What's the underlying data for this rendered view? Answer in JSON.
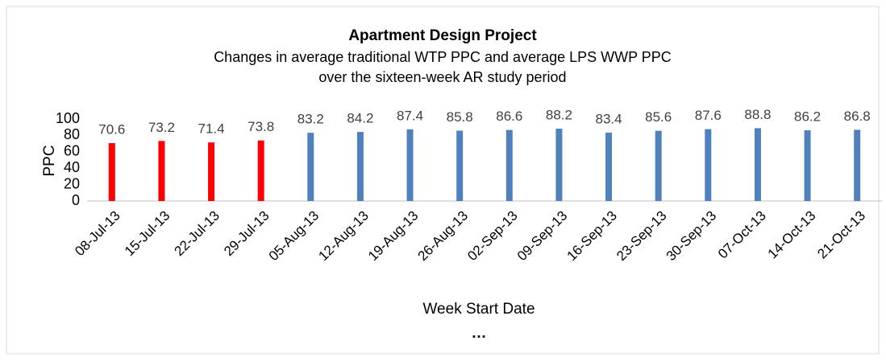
{
  "chart_data": {
    "type": "bar",
    "title": "Apartment Design Project",
    "subtitle": [
      "Changes in average traditional WTP PPC and average LPS WWP PPC",
      "over the sixteen-week AR study period"
    ],
    "x_label": "Week Start Date",
    "y_label": "PPC",
    "annotation": "…",
    "categories": [
      "08-Jul-13",
      "15-Jul-13",
      "22-Jul-13",
      "29-Jul-13",
      "05-Aug-13",
      "12-Aug-13",
      "19-Aug-13",
      "26-Aug-13",
      "02-Sep-13",
      "09-Sep-13",
      "16-Sep-13",
      "23-Sep-13",
      "30-Sep-13",
      "07-Oct-13",
      "14-Oct-13",
      "21-Oct-13"
    ],
    "values": [
      70.6,
      73.2,
      71.4,
      73.8,
      83.2,
      84.2,
      87.4,
      85.8,
      86.6,
      88.2,
      83.4,
      85.6,
      87.6,
      88.8,
      86.2,
      86.8
    ],
    "colors": [
      "#ff0000",
      "#ff0000",
      "#ff0000",
      "#ff0000",
      "#4f81bd",
      "#4f81bd",
      "#4f81bd",
      "#4f81bd",
      "#4f81bd",
      "#4f81bd",
      "#4f81bd",
      "#4f81bd",
      "#4f81bd",
      "#4f81bd",
      "#4f81bd",
      "#4f81bd"
    ],
    "ylim": [
      0,
      100
    ],
    "yticks": [
      0,
      20,
      40,
      60,
      80,
      100
    ],
    "grid": false
  }
}
